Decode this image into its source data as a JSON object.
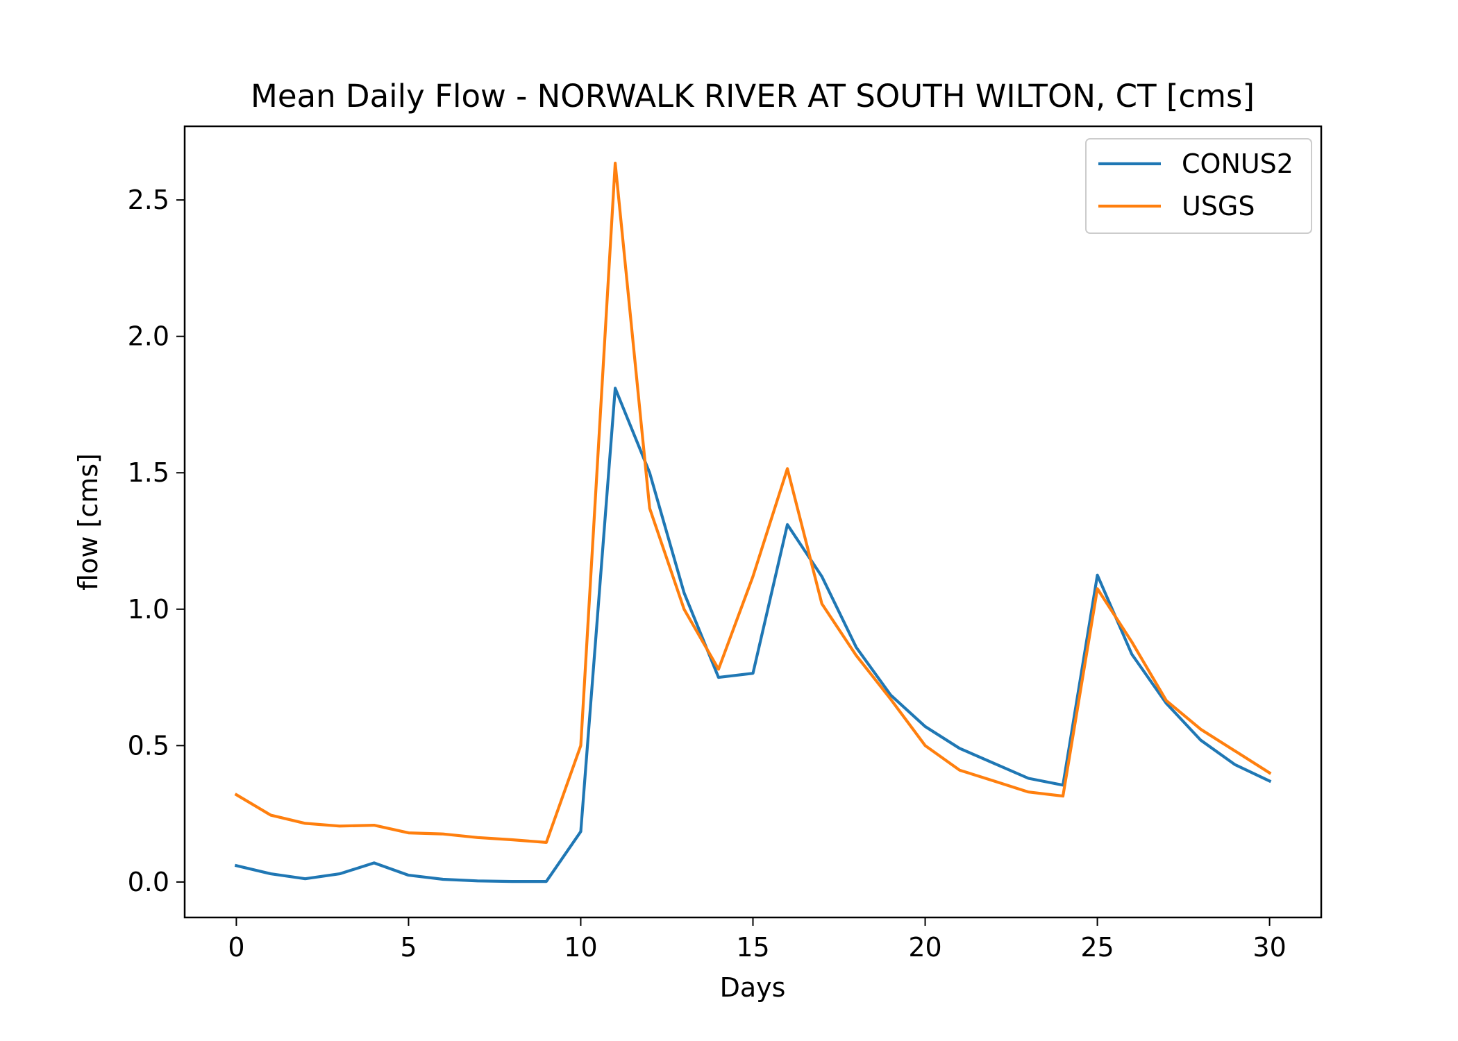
{
  "chart_data": {
    "type": "line",
    "title": "Mean Daily Flow - NORWALK RIVER AT SOUTH WILTON, CT [cms]",
    "xlabel": "Days",
    "ylabel": "flow [cms]",
    "xlim": [
      -1.5,
      31.5
    ],
    "ylim": [
      -0.13,
      2.77
    ],
    "xticks": [
      0,
      5,
      10,
      15,
      20,
      25,
      30
    ],
    "yticks": [
      0.0,
      0.5,
      1.0,
      1.5,
      2.0,
      2.5
    ],
    "xtick_labels": [
      "0",
      "5",
      "10",
      "15",
      "20",
      "25",
      "30"
    ],
    "ytick_labels": [
      "0.0",
      "0.5",
      "1.0",
      "1.5",
      "2.0",
      "2.5"
    ],
    "grid": false,
    "legend_position": "top-right",
    "x": [
      0,
      1,
      2,
      3,
      4,
      5,
      6,
      7,
      8,
      9,
      10,
      11,
      12,
      13,
      14,
      15,
      16,
      17,
      18,
      19,
      20,
      21,
      22,
      23,
      24,
      25,
      26,
      27,
      28,
      29,
      30
    ],
    "series": [
      {
        "name": "CONUS2",
        "color": "#1f77b4",
        "values": [
          0.06,
          0.03,
          0.012,
          0.03,
          0.07,
          0.025,
          0.01,
          0.004,
          0.002,
          0.002,
          0.185,
          1.81,
          1.5,
          1.06,
          0.75,
          0.765,
          1.31,
          1.12,
          0.86,
          0.685,
          0.57,
          0.49,
          0.435,
          0.38,
          0.355,
          1.125,
          0.835,
          0.655,
          0.52,
          0.43,
          0.37
        ]
      },
      {
        "name": "USGS",
        "color": "#ff7f0e",
        "values": [
          0.32,
          0.245,
          0.215,
          0.205,
          0.208,
          0.18,
          0.176,
          0.163,
          0.155,
          0.145,
          0.5,
          2.635,
          1.37,
          1.0,
          0.78,
          1.12,
          1.515,
          1.02,
          0.83,
          0.67,
          0.5,
          0.41,
          0.37,
          0.33,
          0.315,
          1.075,
          0.88,
          0.665,
          0.56,
          0.48,
          0.4
        ]
      }
    ]
  }
}
